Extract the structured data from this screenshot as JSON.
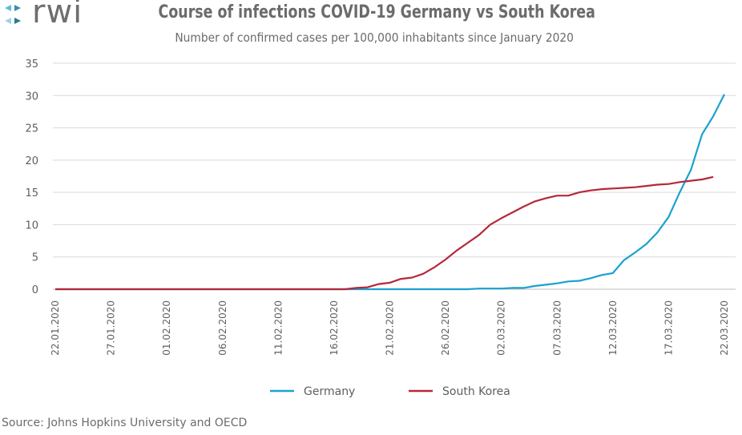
{
  "logo": {
    "text": "rwi"
  },
  "chart_data": {
    "type": "line",
    "title": "Course of infections COVID-19 Germany vs South Korea",
    "subtitle": "Number of confirmed cases per 100,000 inhabitants since January 2020",
    "xlabel": "",
    "ylabel": "",
    "ylim": [
      0,
      35
    ],
    "yticks": [
      "0",
      "5",
      "10",
      "15",
      "20",
      "25",
      "30",
      "35"
    ],
    "xticks": [
      {
        "index": 0,
        "label": "22.01.2020"
      },
      {
        "index": 5,
        "label": "27.01.2020"
      },
      {
        "index": 10,
        "label": "01.02.2020"
      },
      {
        "index": 15,
        "label": "06.02.2020"
      },
      {
        "index": 20,
        "label": "11.02.2020"
      },
      {
        "index": 25,
        "label": "16.02.2020"
      },
      {
        "index": 30,
        "label": "21.02.2020"
      },
      {
        "index": 35,
        "label": "26.02.2020"
      },
      {
        "index": 40,
        "label": "02.03.2020"
      },
      {
        "index": 45,
        "label": "07.03.2020"
      },
      {
        "index": 50,
        "label": "12.03.2020"
      },
      {
        "index": 55,
        "label": "17.03.2020"
      },
      {
        "index": 60,
        "label": "22.03.2020"
      }
    ],
    "grid": true,
    "legend": "bottom-center",
    "series": [
      {
        "name": "Germany",
        "color": "#1aa1d0",
        "values": [
          0,
          0,
          0,
          0,
          0,
          0,
          0,
          0,
          0,
          0,
          0,
          0,
          0,
          0,
          0,
          0,
          0,
          0,
          0,
          0,
          0,
          0,
          0,
          0,
          0,
          0,
          0,
          0,
          0,
          0,
          0,
          0,
          0,
          0,
          0,
          0,
          0,
          0,
          0.1,
          0.1,
          0.1,
          0.2,
          0.2,
          0.5,
          0.7,
          0.9,
          1.2,
          1.3,
          1.7,
          2.2,
          2.5,
          4.5,
          5.7,
          7.0,
          8.8,
          11.2,
          15.0,
          18.5,
          24.0,
          26.8,
          30.2
        ]
      },
      {
        "name": "South Korea",
        "color": "#b5283b",
        "values": [
          0,
          0,
          0,
          0,
          0,
          0,
          0,
          0,
          0,
          0,
          0,
          0,
          0,
          0,
          0,
          0,
          0,
          0,
          0,
          0,
          0,
          0,
          0,
          0,
          0,
          0,
          0,
          0.2,
          0.3,
          0.8,
          1.0,
          1.6,
          1.8,
          2.4,
          3.4,
          4.6,
          6.0,
          7.2,
          8.4,
          10.0,
          11.0,
          11.9,
          12.8,
          13.6,
          14.1,
          14.5,
          14.5,
          15.0,
          15.3,
          15.5,
          15.6,
          15.7,
          15.8,
          16.0,
          16.2,
          16.3,
          16.6,
          16.8,
          17.0,
          17.4
        ]
      }
    ]
  },
  "source": "Source: Johns Hopkins University and OECD"
}
